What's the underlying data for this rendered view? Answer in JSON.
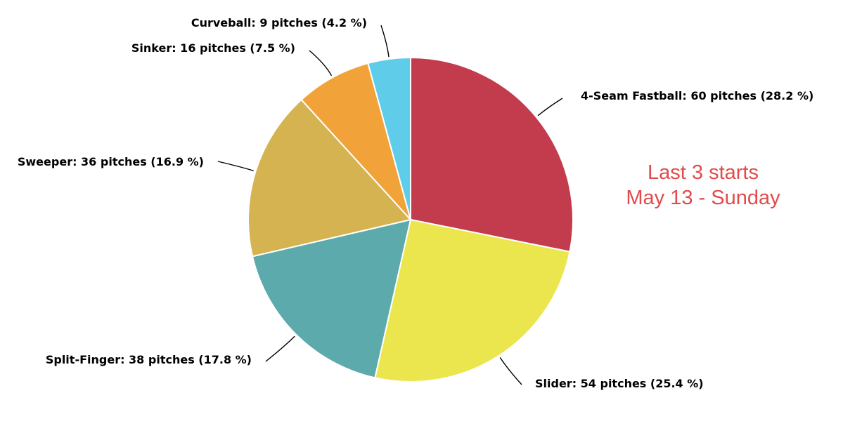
{
  "chart_data": {
    "type": "pie",
    "title": "",
    "slices": [
      {
        "name": "4-Seam Fastball",
        "value": 60,
        "label": "4-Seam Fastball: 60 pitches (28.2 %)",
        "color": "#c23c4e"
      },
      {
        "name": "Slider",
        "value": 54,
        "label": "Slider: 54 pitches (25.4 %)",
        "color": "#ebe64d"
      },
      {
        "name": "Split-Finger",
        "value": 38,
        "label": "Split-Finger: 38 pitches (17.8 %)",
        "color": "#5caaac"
      },
      {
        "name": "Sweeper",
        "value": 36,
        "label": "Sweeper: 36 pitches (16.9 %)",
        "color": "#d5b351"
      },
      {
        "name": "Sinker",
        "value": 16,
        "label": "Sinker: 16 pitches (7.5 %)",
        "color": "#f1a33a"
      },
      {
        "name": "Curveball",
        "value": 9,
        "label": "Curveball: 9 pitches (4.2 %)",
        "color": "#5fcde9"
      }
    ],
    "annotation": [
      "Last 3 starts",
      "May 13 - Sunday"
    ]
  }
}
